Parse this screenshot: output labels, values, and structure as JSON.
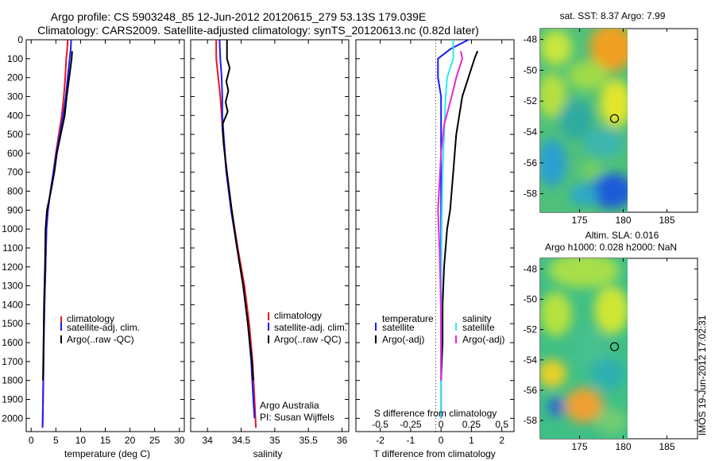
{
  "figure": {
    "title_line1": "Argo profile: CS 5903248_85 12-Jun-2012 20120615_279 53.13S 179.039E",
    "title_line2": "Climatology: CARS2009. Satellite-adjusted climatology: synTS_20120613.nc (0.82d later)",
    "stamp": "IMOS 19-Jun-2012 17:02:31"
  },
  "chart_data": [
    {
      "type": "line",
      "panel": "temperature",
      "xlabel": "temperature (deg C)",
      "ylabel": "",
      "xlim": [
        -1,
        31
      ],
      "ylim": [
        2070,
        0
      ],
      "xticks": [
        "0",
        "5",
        "10",
        "15",
        "20",
        "25",
        "30"
      ],
      "yticks": [
        "0",
        "100",
        "200",
        "300",
        "400",
        "500",
        "600",
        "700",
        "800",
        "900",
        "1000",
        "1100",
        "1200",
        "1300",
        "1400",
        "1500",
        "1600",
        "1700",
        "1800",
        "1900",
        "2000"
      ],
      "legend": [
        "climatology",
        "satellite-adj. clim.",
        "Argo(..raw -QC)"
      ],
      "colors": [
        "#e8141e",
        "#1a1aff",
        "#000000"
      ],
      "series": [
        {
          "name": "climatology",
          "color": "#e8141e",
          "points": [
            [
              7.4,
              0
            ],
            [
              7.3,
              50
            ],
            [
              7.1,
              100
            ],
            [
              6.9,
              200
            ],
            [
              6.6,
              300
            ],
            [
              6.2,
              400
            ],
            [
              5.6,
              500
            ],
            [
              5.0,
              600
            ],
            [
              4.5,
              700
            ],
            [
              3.9,
              800
            ],
            [
              3.4,
              900
            ],
            [
              3.1,
              1000
            ],
            [
              2.9,
              1200
            ],
            [
              2.7,
              1400
            ],
            [
              2.55,
              1600
            ],
            [
              2.45,
              1800
            ],
            [
              2.35,
              2000
            ],
            [
              2.3,
              2050
            ]
          ]
        },
        {
          "name": "satellite-adj. clim.",
          "color": "#1a1aff",
          "points": [
            [
              8.1,
              0
            ],
            [
              8.0,
              50
            ],
            [
              7.8,
              100
            ],
            [
              7.4,
              200
            ],
            [
              7.0,
              300
            ],
            [
              6.5,
              400
            ],
            [
              5.8,
              500
            ],
            [
              5.1,
              600
            ],
            [
              4.5,
              700
            ],
            [
              3.9,
              800
            ],
            [
              3.4,
              900
            ],
            [
              3.1,
              1000
            ],
            [
              2.9,
              1200
            ],
            [
              2.7,
              1400
            ],
            [
              2.55,
              1600
            ],
            [
              2.45,
              1800
            ],
            [
              2.35,
              2000
            ],
            [
              2.3,
              2050
            ]
          ]
        },
        {
          "name": "Argo(..raw -QC)",
          "color": "#000000",
          "points": [
            [
              8.3,
              60
            ],
            [
              8.2,
              100
            ],
            [
              7.7,
              200
            ],
            [
              7.2,
              300
            ],
            [
              6.8,
              400
            ],
            [
              6.0,
              500
            ],
            [
              5.2,
              600
            ],
            [
              4.7,
              700
            ],
            [
              4.0,
              800
            ],
            [
              3.2,
              900
            ],
            [
              2.9,
              1000
            ],
            [
              2.8,
              1200
            ],
            [
              2.6,
              1400
            ],
            [
              2.5,
              1600
            ],
            [
              2.4,
              1800
            ]
          ]
        }
      ]
    },
    {
      "type": "line",
      "panel": "salinity",
      "xlabel": "salinity",
      "xlim": [
        33.75,
        36.1
      ],
      "ylim": [
        2070,
        0
      ],
      "xticks": [
        "34",
        "34.5",
        "35",
        "35.5",
        "36"
      ],
      "legend": [
        "climatology",
        "satellite-adj. clim.",
        "Argo(..raw -QC)"
      ],
      "annotation": [
        "Argo Australia",
        "PI: Susan Wijffels"
      ],
      "series": [
        {
          "name": "climatology",
          "color": "#e8141e",
          "points": [
            [
              34.13,
              0
            ],
            [
              34.13,
              100
            ],
            [
              34.16,
              200
            ],
            [
              34.19,
              300
            ],
            [
              34.21,
              400
            ],
            [
              34.23,
              500
            ],
            [
              34.28,
              700
            ],
            [
              34.36,
              900
            ],
            [
              34.45,
              1100
            ],
            [
              34.55,
              1300
            ],
            [
              34.62,
              1500
            ],
            [
              34.67,
              1700
            ],
            [
              34.7,
              1900
            ],
            [
              34.72,
              2050
            ]
          ]
        },
        {
          "name": "satellite-adj. clim.",
          "color": "#1a1aff",
          "points": [
            [
              34.18,
              0
            ],
            [
              34.19,
              100
            ],
            [
              34.21,
              200
            ],
            [
              34.22,
              300
            ],
            [
              34.22,
              400
            ],
            [
              34.24,
              500
            ],
            [
              34.28,
              700
            ],
            [
              34.35,
              900
            ],
            [
              34.44,
              1100
            ],
            [
              34.53,
              1300
            ],
            [
              34.6,
              1500
            ],
            [
              34.65,
              1700
            ],
            [
              34.68,
              1900
            ],
            [
              34.7,
              2000
            ]
          ]
        },
        {
          "name": "Argo(..raw -QC)",
          "color": "#000000",
          "points": [
            [
              34.29,
              0
            ],
            [
              34.29,
              100
            ],
            [
              34.33,
              150
            ],
            [
              34.28,
              220
            ],
            [
              34.31,
              270
            ],
            [
              34.27,
              330
            ],
            [
              34.3,
              380
            ],
            [
              34.22,
              450
            ],
            [
              34.24,
              550
            ],
            [
              34.29,
              700
            ],
            [
              34.36,
              900
            ],
            [
              34.44,
              1100
            ],
            [
              34.53,
              1300
            ],
            [
              34.6,
              1500
            ],
            [
              34.66,
              1700
            ],
            [
              34.68,
              1800
            ]
          ]
        }
      ]
    },
    {
      "type": "line",
      "panel": "difference",
      "xlabel": "T difference from climatology",
      "xlabel_top": "S difference from climatology",
      "xlim": [
        -2.8,
        2.4
      ],
      "ylim": [
        2070,
        0
      ],
      "xticks": [
        "-2",
        "-1",
        "0",
        "1",
        "2"
      ],
      "xticks_S": [
        "-0.5",
        "-0.25",
        "0",
        "0.25",
        "0.5"
      ],
      "legend_headers": [
        "temperature",
        "salinity"
      ],
      "legend": [
        "satellite",
        "Argo(-adj)",
        "satellite",
        "Argo(-adj)"
      ],
      "series": [
        {
          "name": "satellite",
          "group": "temperature",
          "color": "#1a1aff",
          "points": [
            [
              0.9,
              0
            ],
            [
              0.3,
              50
            ],
            [
              -0.1,
              100
            ],
            [
              -0.1,
              200
            ],
            [
              0,
              300
            ],
            [
              0,
              1000
            ],
            [
              0,
              2000
            ]
          ]
        },
        {
          "name": "Argo(-adj)",
          "group": "temperature",
          "color": "#000000",
          "points": [
            [
              1.2,
              60
            ],
            [
              1.1,
              100
            ],
            [
              0.9,
              200
            ],
            [
              0.7,
              300
            ],
            [
              0.6,
              400
            ],
            [
              0.5,
              500
            ],
            [
              0.4,
              700
            ],
            [
              0.3,
              900
            ],
            [
              0.2,
              1000
            ],
            [
              0.1,
              1200
            ],
            [
              0.05,
              1400
            ],
            [
              0.05,
              1600
            ],
            [
              0,
              1800
            ]
          ]
        },
        {
          "name": "satellite",
          "group": "salinity",
          "color": "#2ee8f0",
          "points": [
            [
              0.4,
              0
            ],
            [
              0.4,
              100
            ],
            [
              0.2,
              200
            ],
            [
              0.15,
              300
            ],
            [
              0.1,
              500
            ],
            [
              0.05,
              700
            ],
            [
              0.02,
              1000
            ],
            [
              0,
              1500
            ],
            [
              0,
              2000
            ]
          ]
        },
        {
          "name": "Argo(-adj)",
          "group": "salinity",
          "color": "#e825d9",
          "points": [
            [
              0.65,
              60
            ],
            [
              0.7,
              100
            ],
            [
              0.5,
              200
            ],
            [
              0.35,
              300
            ],
            [
              0.1,
              450
            ],
            [
              0,
              600
            ],
            [
              -0.1,
              900
            ],
            [
              -0.05,
              1100
            ],
            [
              -0.02,
              1300
            ],
            [
              0,
              1500
            ],
            [
              0,
              1800
            ]
          ]
        }
      ]
    },
    {
      "type": "heatmap",
      "panel": "map-sst",
      "title": "sat. SST: 8.37  Argo: 7.99",
      "xlim": [
        170.5,
        188.5
      ],
      "ylim": [
        -59.2,
        -47.3
      ],
      "xticks": [
        "175",
        "180",
        "185"
      ],
      "yticks": [
        "-48",
        "-50",
        "-52",
        "-54",
        "-56",
        "-58"
      ],
      "marker": {
        "lon": 179.0,
        "lat": -53.13
      }
    },
    {
      "type": "heatmap",
      "panel": "map-sla",
      "title_line1": "Altim. SLA: 0.016",
      "title_line2": "Argo h1000: 0.028 h2000: NaN",
      "xlim": [
        170.5,
        188.5
      ],
      "ylim": [
        -59.2,
        -47.3
      ],
      "xticks": [
        "175",
        "180",
        "185"
      ],
      "yticks": [
        "-48",
        "-50",
        "-52",
        "-54",
        "-56",
        "-58"
      ],
      "marker": {
        "lon": 179.0,
        "lat": -53.13
      }
    }
  ]
}
